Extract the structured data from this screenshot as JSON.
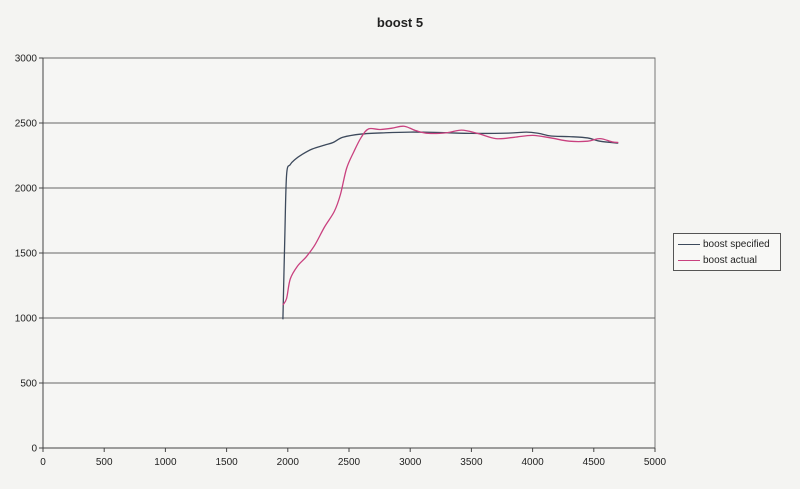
{
  "chart_data": {
    "type": "line",
    "title": "boost 5",
    "xlabel": "",
    "ylabel": "",
    "xlim": [
      0,
      5000
    ],
    "ylim": [
      0,
      3000
    ],
    "x_ticks": [
      0,
      500,
      1000,
      1500,
      2000,
      2500,
      3000,
      3500,
      4000,
      4500,
      5000
    ],
    "y_ticks": [
      0,
      500,
      1000,
      1500,
      2000,
      2500,
      3000
    ],
    "grid": "horizontal",
    "legend_position": "right",
    "series": [
      {
        "name": "boost specified",
        "color": "#3d4a5c",
        "points": [
          [
            1960,
            990
          ],
          [
            1975,
            1600
          ],
          [
            1990,
            2100
          ],
          [
            2020,
            2180
          ],
          [
            2060,
            2220
          ],
          [
            2120,
            2260
          ],
          [
            2200,
            2300
          ],
          [
            2300,
            2330
          ],
          [
            2370,
            2350
          ],
          [
            2450,
            2390
          ],
          [
            2600,
            2415
          ],
          [
            2800,
            2425
          ],
          [
            3000,
            2430
          ],
          [
            3200,
            2428
          ],
          [
            3500,
            2420
          ],
          [
            3800,
            2422
          ],
          [
            3950,
            2430
          ],
          [
            4050,
            2420
          ],
          [
            4150,
            2400
          ],
          [
            4300,
            2395
          ],
          [
            4450,
            2385
          ],
          [
            4550,
            2360
          ],
          [
            4700,
            2345
          ]
        ]
      },
      {
        "name": "boost actual",
        "color": "#c9417f",
        "points": [
          [
            1960,
            1100
          ],
          [
            1990,
            1150
          ],
          [
            2020,
            1300
          ],
          [
            2080,
            1400
          ],
          [
            2150,
            1470
          ],
          [
            2220,
            1560
          ],
          [
            2300,
            1700
          ],
          [
            2380,
            1820
          ],
          [
            2430,
            1950
          ],
          [
            2480,
            2150
          ],
          [
            2540,
            2280
          ],
          [
            2600,
            2390
          ],
          [
            2660,
            2455
          ],
          [
            2750,
            2450
          ],
          [
            2850,
            2460
          ],
          [
            2950,
            2475
          ],
          [
            3050,
            2440
          ],
          [
            3150,
            2420
          ],
          [
            3300,
            2425
          ],
          [
            3420,
            2445
          ],
          [
            3550,
            2420
          ],
          [
            3700,
            2380
          ],
          [
            3850,
            2390
          ],
          [
            4000,
            2405
          ],
          [
            4150,
            2385
          ],
          [
            4300,
            2360
          ],
          [
            4450,
            2360
          ],
          [
            4550,
            2380
          ],
          [
            4650,
            2355
          ],
          [
            4700,
            2350
          ]
        ]
      }
    ]
  },
  "ui": {
    "title": "boost 5",
    "legend": [
      {
        "label": "boost specified",
        "color": "#3d4a5c"
      },
      {
        "label": "boost actual",
        "color": "#c9417f"
      }
    ]
  }
}
